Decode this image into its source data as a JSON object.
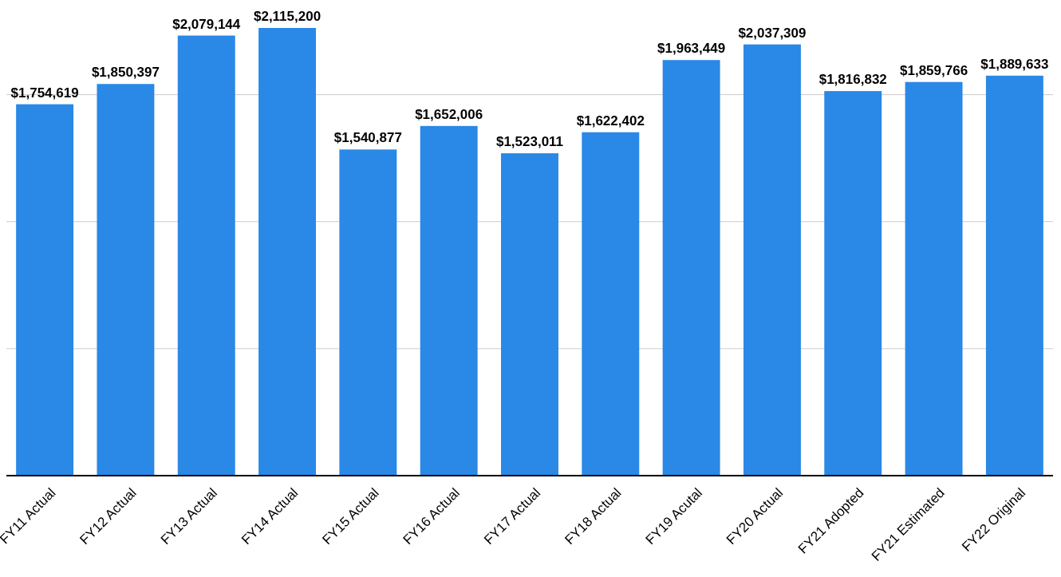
{
  "chart_data": {
    "type": "bar",
    "categories": [
      "FY11 Actual",
      "FY12 Actual",
      "FY13 Actual",
      "FY14 Actual",
      "FY15 Actual",
      "FY16 Actual",
      "FY17 Actual",
      "FY18 Actual",
      "FY19 Acutal",
      "FY20 Actual",
      "FY21 Adopted",
      "FY21 Estimated",
      "FY22 Original"
    ],
    "values": [
      1754619,
      1850397,
      2079144,
      2115200,
      1540877,
      1652006,
      1523011,
      1622402,
      1963449,
      2037309,
      1816832,
      1859766,
      1889633
    ],
    "value_labels": [
      "$1,754,619",
      "$1,850,397",
      "$2,079,144",
      "$2,115,200",
      "$1,540,877",
      "$1,652,006",
      "$1,523,011",
      "$1,622,402",
      "$1,963,449",
      "$2,037,309",
      "$1,816,832",
      "$1,859,766",
      "$1,889,633"
    ],
    "color": "#2a88e6",
    "yticks": [
      {
        "value": 0,
        "label": null
      },
      {
        "value": 600000,
        "label": null
      },
      {
        "value": 1200000,
        "label": null
      },
      {
        "value": 1800000,
        "label": null
      }
    ],
    "grid": "y",
    "tick_labels": "x"
  }
}
